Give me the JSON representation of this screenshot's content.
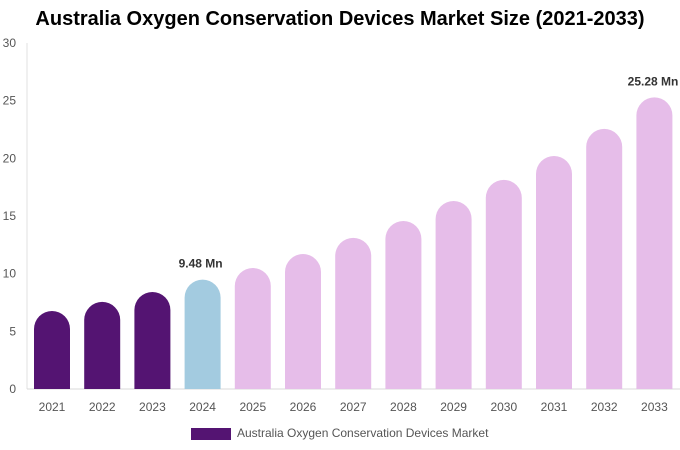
{
  "chart_data": {
    "type": "bar",
    "title": "Australia Oxygen Conservation Devices Market Size (2021-2033)",
    "categories": [
      "2021",
      "2022",
      "2023",
      "2024",
      "2025",
      "2026",
      "2027",
      "2028",
      "2029",
      "2030",
      "2031",
      "2032",
      "2033"
    ],
    "series": [
      {
        "name": "Australia Oxygen Conservation Devices Market",
        "values": [
          6.76,
          7.55,
          8.41,
          9.48,
          10.49,
          11.7,
          13.1,
          14.57,
          16.3,
          18.13,
          20.2,
          22.55,
          25.28
        ]
      }
    ],
    "data_labels": {
      "3": "9.48 Mn",
      "12": "25.28 Mn"
    },
    "ylim": [
      0,
      30
    ],
    "yticks": [
      0,
      5,
      10,
      15,
      20,
      25,
      30
    ],
    "grid": false,
    "legend": "bottom",
    "colors": {
      "historical": "#541472",
      "base_year": "#a3cbe0",
      "forecast": "#e6bde9"
    }
  }
}
